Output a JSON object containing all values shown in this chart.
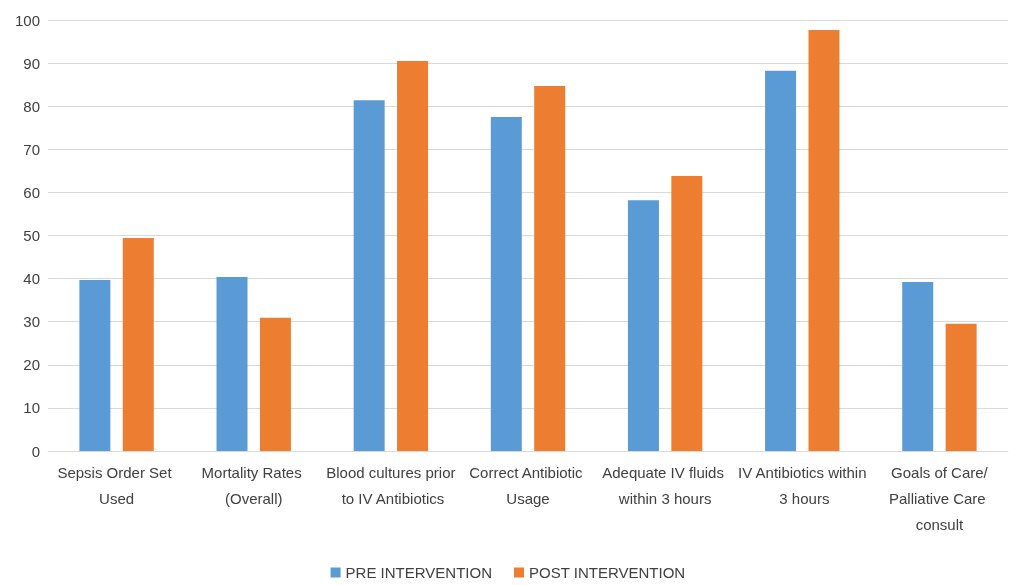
{
  "chart_data": {
    "type": "bar",
    "categories": [
      "Sepsis Order Set Used",
      "Mortality Rates (Overall)",
      "Blood cultures prior to IV Antibiotics",
      "Correct Antibiotic Usage",
      "Adequate IV fluids within 3 hours",
      "IV Antibiotics within 3 hours",
      "Goals of Care/Palliative Care consult"
    ],
    "series": [
      {
        "name": "PRE INTERVENTION",
        "color": "#5b9bd5",
        "values": [
          39.7,
          40.4,
          81.4,
          77.5,
          58.2,
          88.2,
          39.2
        ]
      },
      {
        "name": "POST INTERVENTION",
        "color": "#ed7d31",
        "values": [
          49.4,
          30.9,
          90.5,
          84.7,
          63.8,
          97.7,
          29.5
        ]
      }
    ],
    "ylim": [
      0,
      100
    ],
    "yticks": [
      0,
      10,
      20,
      30,
      40,
      50,
      60,
      70,
      80,
      90,
      100
    ],
    "grid": "y",
    "legend": "bottom"
  }
}
